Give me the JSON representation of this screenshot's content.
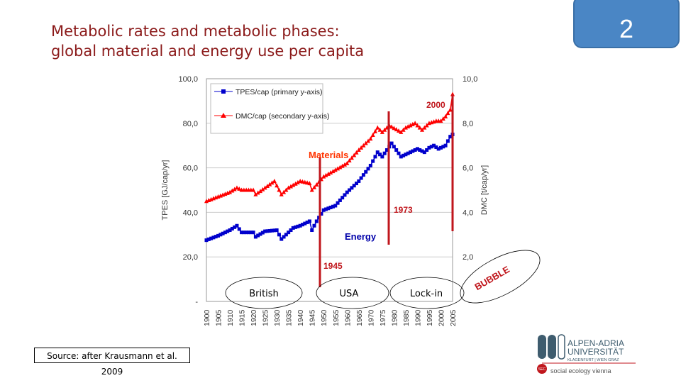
{
  "slide": {
    "title_line1": "Metabolic rates and metabolic phases:",
    "title_line2": "global material and energy use per capita",
    "page_number": "2",
    "source": "Source: after Krausmann et al. 2009"
  },
  "annotations": {
    "materials": "Materials",
    "energy": "Energy",
    "y1945": "1945",
    "y1973": "1973",
    "y2000": "2000",
    "phase_british": "British",
    "phase_usa": "USA",
    "phase_lockin": "Lock-in",
    "bubble": "BUBBLE"
  },
  "logo": {
    "line1": "ALPEN-ADRIA",
    "line2": "UNIVERSITÄT",
    "line3": "KLAGENFURT | WIEN GRAZ",
    "sec": "SEC",
    "line4": "social ecology vienna"
  },
  "colors": {
    "tpes": "#0000cc",
    "dmc": "#ff0000",
    "title": "#8b1a1a",
    "annotation": "#c0161c",
    "badge": "#4a86c5"
  },
  "chart_data": {
    "type": "line",
    "ylabel": "TPES [GJ/cap/yr]",
    "y2label": "DMC [t/cap/yr]",
    "ylim": [
      0,
      100
    ],
    "y2lim": [
      0,
      10
    ],
    "yticks": [
      "-",
      "20,0",
      "40,0",
      "60,0",
      "80,0",
      "100,0"
    ],
    "y2ticks": [
      "2,0",
      "4,0",
      "6,0",
      "8,0",
      "10,0"
    ],
    "xticks": [
      "1900",
      "1905",
      "1910",
      "1915",
      "1920",
      "1925",
      "1930",
      "1935",
      "1940",
      "1945",
      "1950",
      "1955",
      "1960",
      "1965",
      "1970",
      "1975",
      "1980",
      "1985",
      "1990",
      "1995",
      "2000",
      "2005"
    ],
    "grid": true,
    "legend": "top-left",
    "series": [
      {
        "name": "TPES/cap (primary y-axis)",
        "axis": "primary",
        "x": [
          1900,
          1905,
          1910,
          1913,
          1915,
          1920,
          1921,
          1925,
          1930,
          1932,
          1935,
          1937,
          1940,
          1944,
          1945,
          1947,
          1950,
          1955,
          1960,
          1965,
          1970,
          1973,
          1975,
          1979,
          1983,
          1985,
          1990,
          1993,
          1995,
          1997,
          1999,
          2000,
          2002,
          2004,
          2005
        ],
        "y": [
          27.5,
          29.5,
          32,
          34,
          31,
          31,
          29,
          31.5,
          32,
          28,
          31,
          33,
          34,
          36,
          32,
          36,
          41,
          43,
          49,
          54,
          61,
          67,
          65,
          71,
          65,
          66,
          68.5,
          67,
          69,
          70,
          68.5,
          69,
          70,
          74,
          75
        ]
      },
      {
        "name": "DMC/cap (secondary y-axis)",
        "axis": "secondary",
        "x": [
          1900,
          1905,
          1910,
          1913,
          1915,
          1920,
          1921,
          1925,
          1929,
          1932,
          1935,
          1940,
          1944,
          1945,
          1950,
          1955,
          1960,
          1965,
          1970,
          1973,
          1975,
          1978,
          1983,
          1985,
          1989,
          1992,
          1995,
          1998,
          2000,
          2002,
          2004,
          2005
        ],
        "y": [
          4.5,
          4.7,
          4.9,
          5.1,
          5.0,
          5.0,
          4.8,
          5.1,
          5.4,
          4.8,
          5.1,
          5.4,
          5.3,
          5.0,
          5.6,
          5.9,
          6.2,
          6.8,
          7.3,
          7.8,
          7.6,
          7.9,
          7.6,
          7.8,
          8.0,
          7.7,
          8.0,
          8.1,
          8.1,
          8.3,
          8.6,
          9.3
        ]
      }
    ]
  }
}
